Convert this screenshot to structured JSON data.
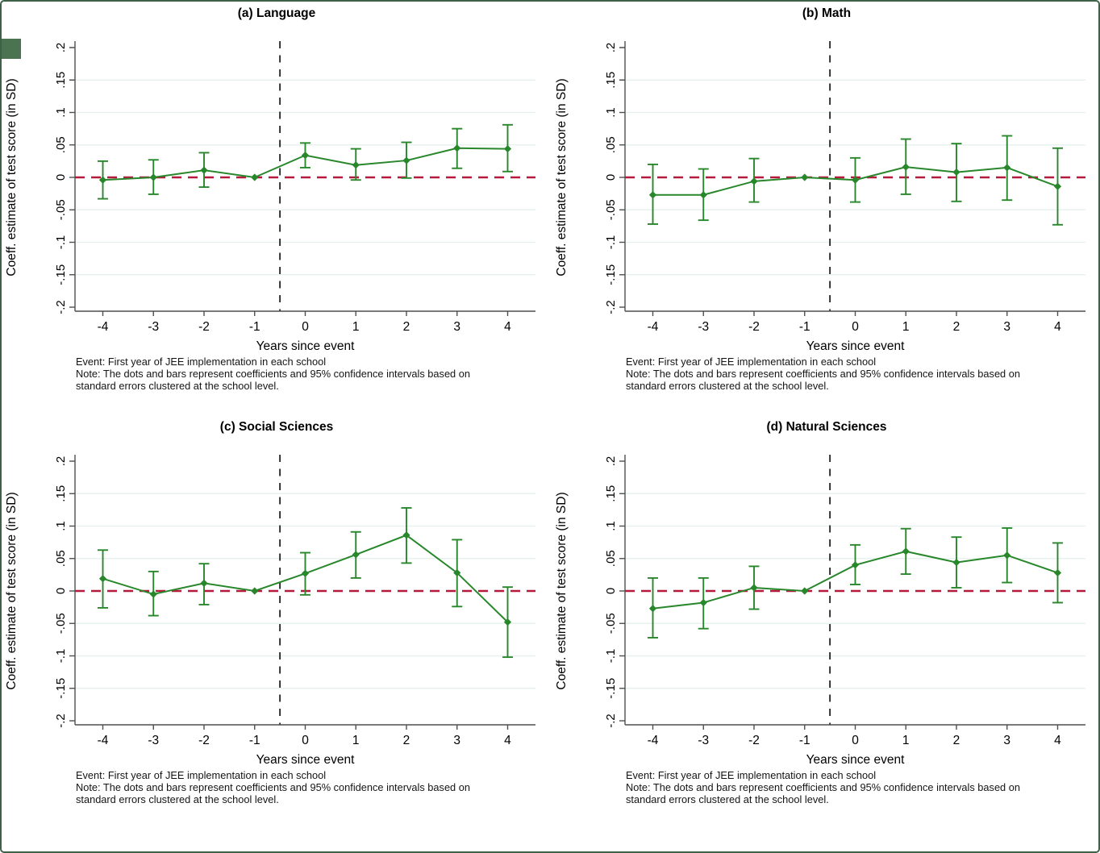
{
  "page": {
    "background": "#ffffff",
    "border_color": "#3e6248",
    "edge_accent_color": "#4b7352"
  },
  "style": {
    "series_color": "#28872b",
    "zero_line_color": "#b51a3c",
    "event_line_color": "#2b2b2b",
    "grid_color": "#e8f2ec",
    "axis_color": "#4f4f4f",
    "text_color": "#000000"
  },
  "shared": {
    "ylabel": "Coeff. estimate of test score (in SD)",
    "xlabel": "Years since event",
    "note_event": "Event: First year of JEE implementation in each school",
    "note_line1": "Note: The dots and bars represent coefficients and 95% confidence intervals based on",
    "note_line2": "standard errors clustered at the school level."
  },
  "chart_data": [
    {
      "type": "line",
      "title": "(a) Language",
      "xlabel": "Years since event",
      "ylabel": "Coeff. estimate of test score (in SD)",
      "x": [
        -4,
        -3,
        -2,
        -1,
        0,
        1,
        2,
        3,
        4
      ],
      "xlim": [
        -4.55,
        4.55
      ],
      "ylim": [
        -0.2,
        0.2
      ],
      "yticks": [
        0.2,
        0.15,
        0.1,
        0.05,
        0,
        -0.05,
        -0.1,
        -0.15,
        -0.2
      ],
      "ytick_labels": [
        ".2",
        ".15",
        ".1",
        ".05",
        "0",
        "-.05",
        "-.1",
        "-.15",
        "-.2"
      ],
      "grid_y": [
        0.15,
        0.1,
        0.05,
        -0.05,
        -0.1,
        -0.15
      ],
      "reference_x": -1,
      "event_line_x": -0.5,
      "zero_line_y": 0,
      "legend": "none",
      "series": [
        {
          "name": "coefficient",
          "values": [
            -0.004,
            0.0,
            0.011,
            0.0,
            0.034,
            0.019,
            0.026,
            0.045,
            0.044
          ]
        }
      ],
      "ci_low": [
        -0.033,
        -0.026,
        -0.015,
        0,
        0.015,
        -0.004,
        -0.001,
        0.014,
        0.009
      ],
      "ci_high": [
        0.025,
        0.027,
        0.038,
        0,
        0.053,
        0.044,
        0.054,
        0.075,
        0.081
      ]
    },
    {
      "type": "line",
      "title": "(b) Math",
      "xlabel": "Years since event",
      "ylabel": "Coeff. estimate of test score (in SD)",
      "x": [
        -4,
        -3,
        -2,
        -1,
        0,
        1,
        2,
        3,
        4
      ],
      "xlim": [
        -4.55,
        4.55
      ],
      "ylim": [
        -0.2,
        0.2
      ],
      "yticks": [
        0.2,
        0.15,
        0.1,
        0.05,
        0,
        -0.05,
        -0.1,
        -0.15,
        -0.2
      ],
      "ytick_labels": [
        ".2",
        ".15",
        ".1",
        ".05",
        "0",
        "-.05",
        "-.1",
        "-.15",
        "-.2"
      ],
      "grid_y": [
        0.15,
        0.1,
        0.05,
        -0.05,
        -0.1,
        -0.15
      ],
      "reference_x": -1,
      "event_line_x": -0.5,
      "zero_line_y": 0,
      "legend": "none",
      "series": [
        {
          "name": "coefficient",
          "values": [
            -0.027,
            -0.027,
            -0.006,
            0.0,
            -0.004,
            0.016,
            0.008,
            0.015,
            -0.014
          ]
        }
      ],
      "ci_low": [
        -0.072,
        -0.066,
        -0.038,
        0,
        -0.038,
        -0.026,
        -0.037,
        -0.035,
        -0.073
      ],
      "ci_high": [
        0.02,
        0.013,
        0.029,
        0,
        0.03,
        0.059,
        0.052,
        0.064,
        0.045
      ]
    },
    {
      "type": "line",
      "title": "(c) Social Sciences",
      "xlabel": "Years since event",
      "ylabel": "Coeff. estimate of test score (in SD)",
      "x": [
        -4,
        -3,
        -2,
        -1,
        0,
        1,
        2,
        3,
        4
      ],
      "xlim": [
        -4.55,
        4.55
      ],
      "ylim": [
        -0.2,
        0.2
      ],
      "yticks": [
        0.2,
        0.15,
        0.1,
        0.05,
        0,
        -0.05,
        -0.1,
        -0.15,
        -0.2
      ],
      "ytick_labels": [
        ".2",
        ".15",
        ".1",
        ".05",
        "0",
        "-.05",
        "-.1",
        "-.15",
        "-.2"
      ],
      "grid_y": [
        0.15,
        0.1,
        0.05,
        -0.05,
        -0.1,
        -0.15
      ],
      "reference_x": -1,
      "event_line_x": -0.5,
      "zero_line_y": 0,
      "legend": "none",
      "series": [
        {
          "name": "coefficient",
          "values": [
            0.019,
            -0.005,
            0.012,
            0.0,
            0.027,
            0.056,
            0.086,
            0.028,
            -0.048
          ]
        }
      ],
      "ci_low": [
        -0.026,
        -0.038,
        -0.021,
        0,
        -0.006,
        0.02,
        0.043,
        -0.024,
        -0.102
      ],
      "ci_high": [
        0.063,
        0.03,
        0.042,
        0,
        0.059,
        0.091,
        0.128,
        0.079,
        0.006
      ]
    },
    {
      "type": "line",
      "title": "(d) Natural Sciences",
      "xlabel": "Years since event",
      "ylabel": "Coeff. estimate of test score (in SD)",
      "x": [
        -4,
        -3,
        -2,
        -1,
        0,
        1,
        2,
        3,
        4
      ],
      "xlim": [
        -4.55,
        4.55
      ],
      "ylim": [
        -0.2,
        0.2
      ],
      "yticks": [
        0.2,
        0.15,
        0.1,
        0.05,
        0,
        -0.05,
        -0.1,
        -0.15,
        -0.2
      ],
      "ytick_labels": [
        ".2",
        ".15",
        ".1",
        ".05",
        "0",
        "-.05",
        "-.1",
        "-.15",
        "-.2"
      ],
      "grid_y": [
        0.15,
        0.1,
        0.05,
        -0.05,
        -0.1,
        -0.15
      ],
      "reference_x": -1,
      "event_line_x": -0.5,
      "zero_line_y": 0,
      "legend": "none",
      "series": [
        {
          "name": "coefficient",
          "values": [
            -0.027,
            -0.018,
            0.005,
            0.0,
            0.04,
            0.061,
            0.044,
            0.055,
            0.028
          ]
        }
      ],
      "ci_low": [
        -0.072,
        -0.058,
        -0.028,
        0,
        0.01,
        0.026,
        0.005,
        0.013,
        -0.018
      ],
      "ci_high": [
        0.02,
        0.02,
        0.038,
        0,
        0.071,
        0.096,
        0.083,
        0.097,
        0.074
      ]
    }
  ]
}
